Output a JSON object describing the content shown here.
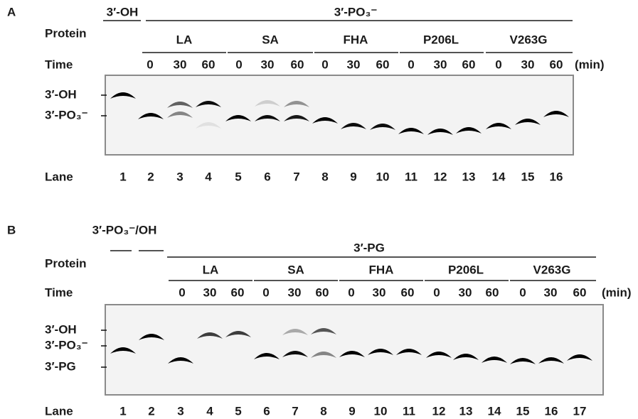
{
  "panels": [
    {
      "label": "A",
      "header_groups": [
        "3′-OH",
        "3′-PO₃⁻"
      ],
      "protein_label": "Protein",
      "proteins": [
        "LA",
        "SA",
        "FHA",
        "P206L",
        "V263G"
      ],
      "time_label": "Time",
      "times": [
        [
          0,
          30,
          60
        ],
        [
          0,
          30,
          60
        ],
        [
          0,
          30,
          60
        ],
        [
          0,
          30,
          60
        ],
        [
          0,
          30,
          60
        ]
      ],
      "time_unit": "(min)",
      "band_labels": [
        "3′-OH",
        "3′-PO₃⁻"
      ],
      "lane_label": "Lane",
      "lanes": [
        1,
        2,
        3,
        4,
        5,
        6,
        7,
        8,
        9,
        10,
        11,
        12,
        13,
        14,
        15,
        16
      ]
    },
    {
      "label": "B",
      "header_groups": [
        "3′-PO₃⁻/OH",
        "3′-PG"
      ],
      "protein_label": "Protein",
      "proteins": [
        "LA",
        "SA",
        "FHA",
        "P206L",
        "V263G"
      ],
      "time_label": "Time",
      "times": [
        [
          0,
          30,
          60
        ],
        [
          0,
          30,
          60
        ],
        [
          0,
          30,
          60
        ],
        [
          0,
          30,
          60
        ],
        [
          0,
          30,
          60
        ]
      ],
      "time_unit": "(min)",
      "band_labels": [
        "3′-OH",
        "3′-PO₃⁻",
        "3′-PG"
      ],
      "lane_label": "Lane",
      "lanes": [
        1,
        2,
        3,
        4,
        5,
        6,
        7,
        8,
        9,
        10,
        11,
        12,
        13,
        14,
        15,
        16,
        17
      ]
    }
  ]
}
